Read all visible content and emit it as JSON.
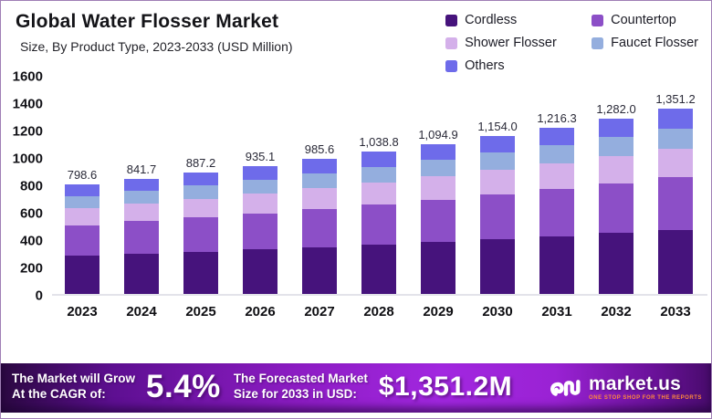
{
  "header": {
    "title": "Global Water Flosser Market",
    "subtitle": "Size, By Product Type, 2023-2033 (USD Million)"
  },
  "chart_data": {
    "type": "bar",
    "stacked": true,
    "title": "Global Water Flosser Market",
    "subtitle": "Size, By Product Type, 2023-2033 (USD Million)",
    "xlabel": "",
    "ylabel": "",
    "ylim": [
      0,
      1600
    ],
    "ytick_step": 200,
    "grid": false,
    "legend_position": "top-right",
    "categories": [
      "2023",
      "2024",
      "2025",
      "2026",
      "2027",
      "2028",
      "2029",
      "2030",
      "2031",
      "2032",
      "2033"
    ],
    "totals": [
      798.6,
      841.7,
      887.2,
      935.1,
      985.6,
      1038.8,
      1094.9,
      1154.0,
      1216.3,
      1282.0,
      1351.2
    ],
    "total_labels": [
      "798.6",
      "841.7",
      "887.2",
      "935.1",
      "985.6",
      "1,038.8",
      "1,094.9",
      "1,154.0",
      "1,216.3",
      "1,282.0",
      "1,351.2"
    ],
    "series": [
      {
        "name": "Cordless",
        "color": "#46137c",
        "values": [
          277.1,
          292.1,
          307.9,
          324.5,
          342.0,
          360.5,
          379.9,
          400.4,
          422.1,
          444.9,
          468.9
        ]
      },
      {
        "name": "Countertop",
        "color": "#8c4fc7",
        "values": [
          226.0,
          238.2,
          251.1,
          264.6,
          278.9,
          294.0,
          309.9,
          326.6,
          344.2,
          362.8,
          382.4
        ]
      },
      {
        "name": "Shower Flosser",
        "color": "#d4b0ea",
        "values": [
          123.0,
          129.6,
          136.6,
          144.0,
          151.8,
          160.0,
          168.6,
          177.7,
          187.3,
          197.4,
          208.1
        ]
      },
      {
        "name": "Faucet Flosser",
        "color": "#94aede",
        "values": [
          87.0,
          91.7,
          96.7,
          101.9,
          107.4,
          113.2,
          119.3,
          125.8,
          132.6,
          139.7,
          147.3
        ]
      },
      {
        "name": "Others",
        "color": "#6e6bea",
        "values": [
          85.5,
          90.1,
          94.9,
          100.1,
          105.5,
          111.1,
          117.2,
          123.5,
          130.1,
          137.2,
          144.5
        ]
      }
    ]
  },
  "banner": {
    "cagr_label_line1": "The Market will Grow",
    "cagr_label_line2": "At the CAGR of:",
    "cagr_value": "5.4%",
    "forecast_label_line1": "The Forecasted Market",
    "forecast_label_line2": "Size for 2033 in USD:",
    "forecast_value": "$1,351.2M",
    "logo_text": "market.us",
    "logo_tagline": "ONE STOP SHOP FOR THE REPORTS"
  }
}
